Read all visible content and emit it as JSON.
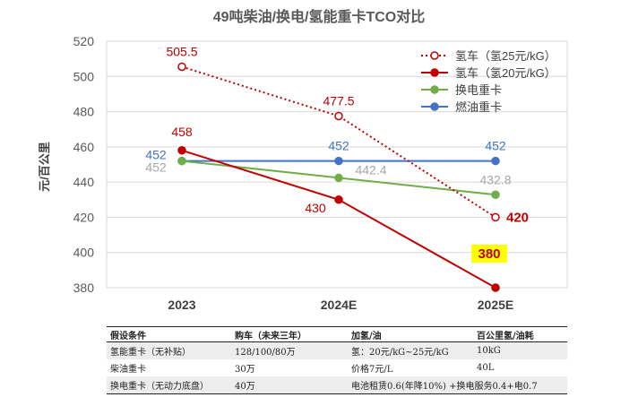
{
  "chart_data": {
    "type": "line",
    "title": "49吨柴油/换电/氢能重卡TCO对比",
    "ylabel": "元/百公里",
    "xlabel": "",
    "categories": [
      "2023",
      "2024E",
      "2025E"
    ],
    "ylim": [
      380,
      520
    ],
    "yticks": [
      380,
      400,
      420,
      440,
      460,
      480,
      500,
      520
    ],
    "grid": "horizontal",
    "legend_position": "top-right",
    "series": [
      {
        "name": "氢车（氢25元/kG）",
        "values": [
          505.5,
          477.5,
          420
        ],
        "color": "#c00000",
        "style": "dotted-hollow",
        "labels": [
          "505.5",
          "477.5",
          "420"
        ]
      },
      {
        "name": "氢车（氢20元/kG）",
        "values": [
          458,
          430,
          380
        ],
        "color": "#c00000",
        "style": "solid",
        "labels": [
          "458",
          "430",
          "380"
        ]
      },
      {
        "name": "换电重卡",
        "values": [
          452,
          442.4,
          432.8
        ],
        "color": "#70ad47",
        "style": "solid",
        "labels": [
          "452",
          "442.4",
          "432.8"
        ]
      },
      {
        "name": "燃油重卡",
        "values": [
          452,
          452,
          452
        ],
        "color": "#4472c4",
        "style": "solid",
        "labels": [
          "452",
          "452",
          "452"
        ]
      }
    ],
    "highlight_color": "#ffff00"
  },
  "table": {
    "headers": [
      "假设条件",
      "购车（未来三年）",
      "加氢/油",
      "百公里氢/油耗"
    ],
    "rows": [
      [
        "氢能重卡（无补贴）",
        "128/100/80万",
        "氢：20元/kG~25元/kG",
        "10kG"
      ],
      [
        "柴油重卡",
        "30万",
        "价格7元/L",
        "40L"
      ],
      [
        "换电重卡（无动力底盘）",
        "40万",
        "电池租赁0.6(年降10%) +换电服务0.4+电0.7",
        ""
      ]
    ]
  }
}
